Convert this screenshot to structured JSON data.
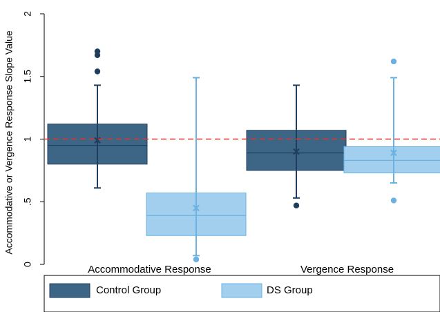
{
  "chart_data": {
    "type": "box",
    "ylabel": "Accommodative or Vergence Response Slope Value",
    "xlabel": "",
    "ylim": [
      0,
      2
    ],
    "yticks": [
      {
        "value": 0,
        "label": "0"
      },
      {
        "value": 0.5,
        "label": ".5"
      },
      {
        "value": 1,
        "label": "1"
      },
      {
        "value": 1.5,
        "label": "1.5"
      },
      {
        "value": 2,
        "label": "2"
      }
    ],
    "categories": [
      "Accommodative Response",
      "Vergence Response"
    ],
    "reference_line": {
      "value": 1.0,
      "color": "#e8312f",
      "style": "dashed"
    },
    "grid": false,
    "legend": {
      "position": "bottom",
      "entries": [
        "Control Group",
        "DS Group"
      ]
    },
    "series": [
      {
        "name": "Control Group",
        "color": "#3d6585",
        "dark": "#1f3d5c",
        "boxes": [
          {
            "category": "Accommodative Response",
            "min": 0.61,
            "q1": 0.8,
            "median": 0.95,
            "q3": 1.12,
            "max": 1.43,
            "mean": 0.99,
            "outliers": [
              1.54,
              1.67,
              1.7
            ]
          },
          {
            "category": "Vergence Response",
            "min": 0.53,
            "q1": 0.75,
            "median": 0.89,
            "q3": 1.07,
            "max": 1.43,
            "mean": 0.9,
            "outliers": [
              0.47
            ]
          }
        ]
      },
      {
        "name": "DS Group",
        "color": "#a3cfee",
        "dark": "#6bb2e2",
        "boxes": [
          {
            "category": "Accommodative Response",
            "min": 0.07,
            "q1": 0.23,
            "median": 0.39,
            "q3": 0.57,
            "max": 1.49,
            "mean": 0.45,
            "outliers": [
              0.04
            ]
          },
          {
            "category": "Vergence Response",
            "min": 0.65,
            "q1": 0.73,
            "median": 0.83,
            "q3": 0.94,
            "max": 1.49,
            "mean": 0.89,
            "outliers": [
              0.51,
              1.62
            ]
          }
        ]
      }
    ]
  }
}
